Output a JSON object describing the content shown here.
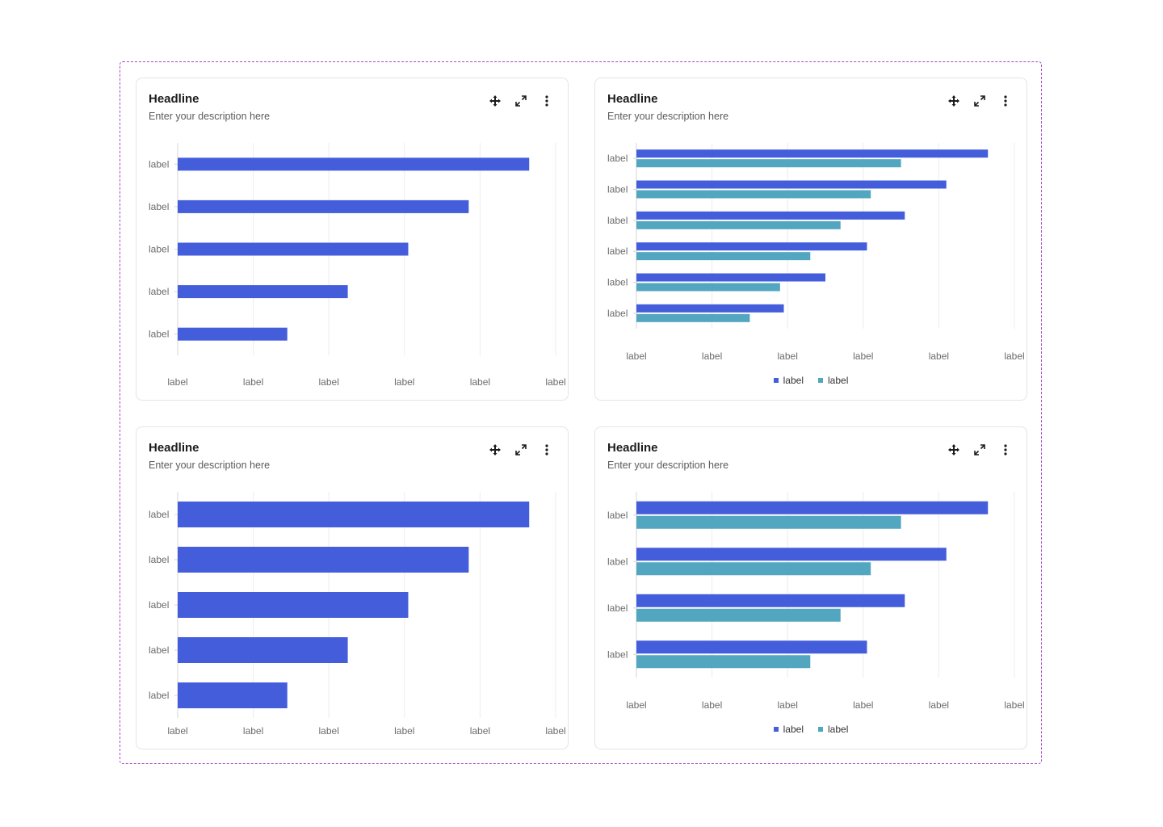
{
  "colors": {
    "primary": "#435ddb",
    "secondary": "#52a6bf",
    "grid": "#ececec",
    "axis": "#d4d4d4"
  },
  "cards": [
    {
      "title": "Headline",
      "description": "Enter your description here"
    },
    {
      "title": "Headline",
      "description": "Enter your description here"
    },
    {
      "title": "Headline",
      "description": "Enter your description here"
    },
    {
      "title": "Headline",
      "description": "Enter your description here"
    }
  ],
  "toolbar_icons": [
    "move-icon",
    "expand-icon",
    "more-vertical-icon"
  ],
  "chart_data": [
    {
      "type": "bar",
      "orientation": "horizontal",
      "categories": [
        "label",
        "label",
        "label",
        "label",
        "label"
      ],
      "series": [
        {
          "values": [
            93,
            77,
            61,
            45,
            29
          ]
        }
      ],
      "x_ticks": [
        "label",
        "label",
        "label",
        "label",
        "label",
        "label"
      ],
      "xlim": [
        0,
        100
      ],
      "grid": true,
      "legend": []
    },
    {
      "type": "bar",
      "orientation": "horizontal",
      "categories": [
        "label",
        "label",
        "label",
        "label",
        "label",
        "label"
      ],
      "series": [
        {
          "name": "label",
          "values": [
            93,
            82,
            71,
            61,
            50,
            39
          ]
        },
        {
          "name": "label",
          "values": [
            70,
            62,
            54,
            46,
            38,
            30
          ]
        }
      ],
      "x_ticks": [
        "label",
        "label",
        "label",
        "label",
        "label",
        "label"
      ],
      "xlim": [
        0,
        100
      ],
      "grid": true,
      "legend": [
        "label",
        "label"
      ]
    },
    {
      "type": "bar",
      "orientation": "horizontal",
      "categories": [
        "label",
        "label",
        "label",
        "label",
        "label"
      ],
      "series": [
        {
          "values": [
            93,
            77,
            61,
            45,
            29
          ]
        }
      ],
      "x_ticks": [
        "label",
        "label",
        "label",
        "label",
        "label",
        "label"
      ],
      "xlim": [
        0,
        100
      ],
      "grid": true,
      "legend": []
    },
    {
      "type": "bar",
      "orientation": "horizontal",
      "categories": [
        "label",
        "label",
        "label",
        "label"
      ],
      "series": [
        {
          "name": "label",
          "values": [
            93,
            82,
            71,
            61
          ]
        },
        {
          "name": "label",
          "values": [
            70,
            62,
            54,
            46
          ]
        }
      ],
      "x_ticks": [
        "label",
        "label",
        "label",
        "label",
        "label",
        "label"
      ],
      "xlim": [
        0,
        100
      ],
      "grid": true,
      "legend": [
        "label",
        "label"
      ]
    }
  ]
}
